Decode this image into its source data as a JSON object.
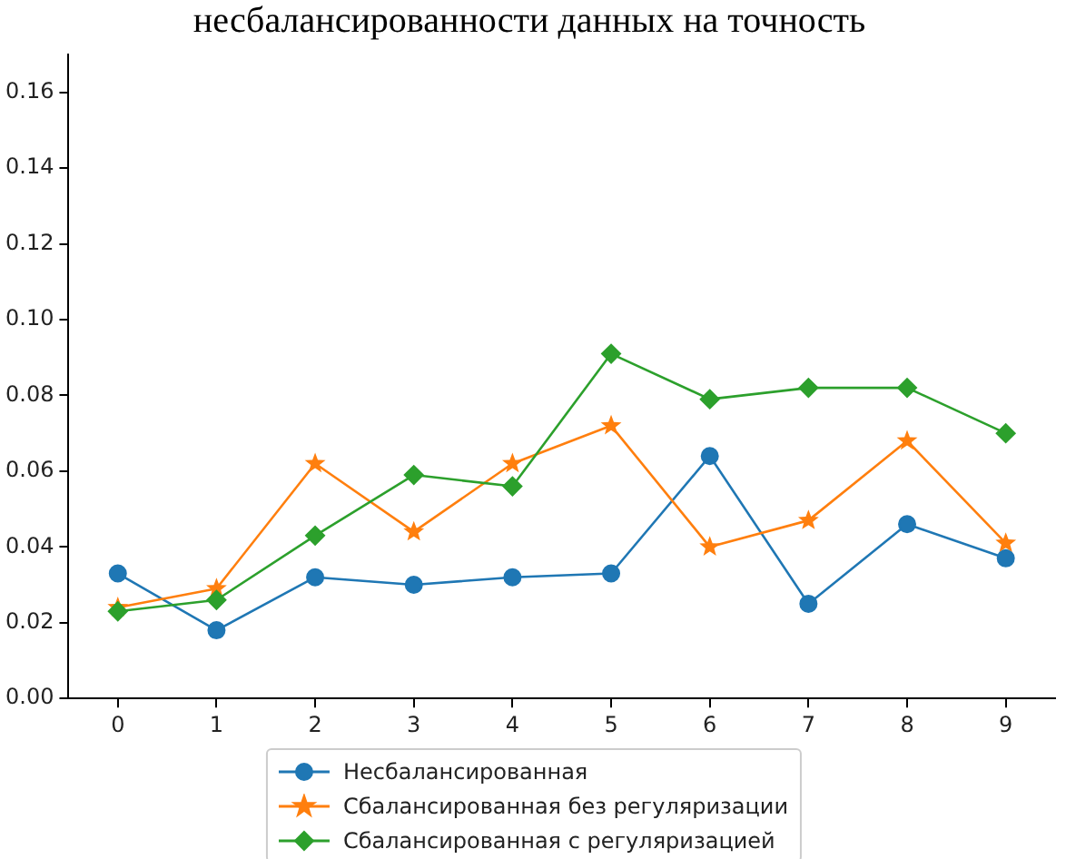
{
  "chart_data": {
    "type": "line",
    "title": "несбалансированности данных на точность",
    "categories": [
      "0",
      "1",
      "2",
      "3",
      "4",
      "5",
      "6",
      "7",
      "8",
      "9"
    ],
    "series": [
      {
        "name": "Несбалансированная",
        "color": "#1f77b4",
        "marker": "circle",
        "values": [
          0.033,
          0.018,
          0.032,
          0.03,
          0.032,
          0.033,
          0.064,
          0.025,
          0.046,
          0.037
        ]
      },
      {
        "name": "Сбалансированная без регуляризации",
        "color": "#ff7f0e",
        "marker": "star",
        "values": [
          0.024,
          0.029,
          0.062,
          0.044,
          0.062,
          0.072,
          0.04,
          0.047,
          0.068,
          0.041
        ]
      },
      {
        "name": "Сбалансированная с регуляризацией",
        "color": "#2ca02c",
        "marker": "diamond",
        "values": [
          0.023,
          0.026,
          0.043,
          0.059,
          0.056,
          0.091,
          0.079,
          0.082,
          0.082,
          0.07
        ]
      }
    ],
    "ylim": [
      0,
      0.17
    ],
    "yticks": [
      {
        "value": 0,
        "label": "0.00"
      },
      {
        "value": 0.02,
        "label": "0.02"
      },
      {
        "value": 0.04,
        "label": "0.04"
      },
      {
        "value": 0.06,
        "label": "0.06"
      },
      {
        "value": 0.08,
        "label": "0.08"
      },
      {
        "value": 0.1,
        "label": "0.10"
      },
      {
        "value": 0.12,
        "label": "0.12"
      },
      {
        "value": 0.14,
        "label": "0.14"
      },
      {
        "value": 0.16,
        "label": "0.16"
      }
    ],
    "grid": false,
    "legend": "bottom"
  }
}
